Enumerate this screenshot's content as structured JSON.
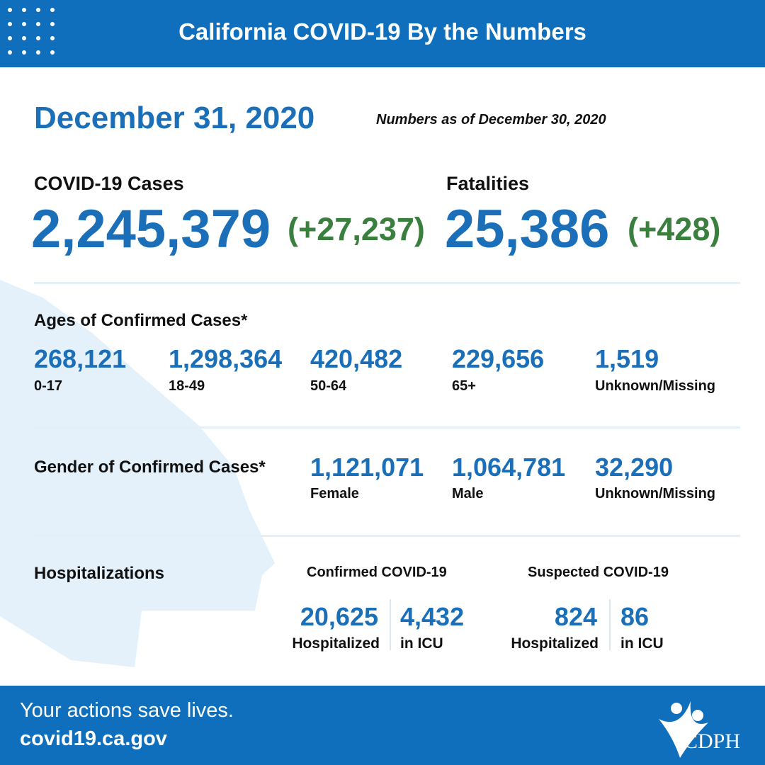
{
  "header": {
    "title": "California COVID-19 By the Numbers"
  },
  "date": "December 31, 2020",
  "as_of": "Numbers as of December 30, 2020",
  "cases": {
    "label": "COVID-19 Cases",
    "total": "2,245,379",
    "change": "(+27,237)"
  },
  "fatalities": {
    "label": "Fatalities",
    "total": "25,386",
    "change": "(+428)"
  },
  "ages": {
    "title": "Ages of Confirmed Cases*",
    "groups": [
      {
        "value": "268,121",
        "label": "0-17"
      },
      {
        "value": "1,298,364",
        "label": "18-49"
      },
      {
        "value": "420,482",
        "label": "50-64"
      },
      {
        "value": "229,656",
        "label": "65+"
      },
      {
        "value": "1,519",
        "label": "Unknown/Missing"
      }
    ]
  },
  "gender": {
    "title": "Gender of Confirmed Cases*",
    "groups": [
      {
        "value": "1,121,071",
        "label": "Female"
      },
      {
        "value": "1,064,781",
        "label": "Male"
      },
      {
        "value": "32,290",
        "label": "Unknown/Missing"
      }
    ]
  },
  "hospitalizations": {
    "title": "Hospitalizations",
    "confirmed": {
      "title": "Confirmed COVID-19",
      "items": [
        {
          "value": "20,625",
          "label": "Hospitalized"
        },
        {
          "value": "4,432",
          "label": "in ICU"
        }
      ]
    },
    "suspected": {
      "title": "Suspected COVID-19",
      "items": [
        {
          "value": "824",
          "label": "Hospitalized"
        },
        {
          "value": "86",
          "label": "in ICU"
        }
      ]
    }
  },
  "footer": {
    "slogan": "Your actions save lives.",
    "url": "covid19.ca.gov",
    "logo": "CDPH"
  }
}
